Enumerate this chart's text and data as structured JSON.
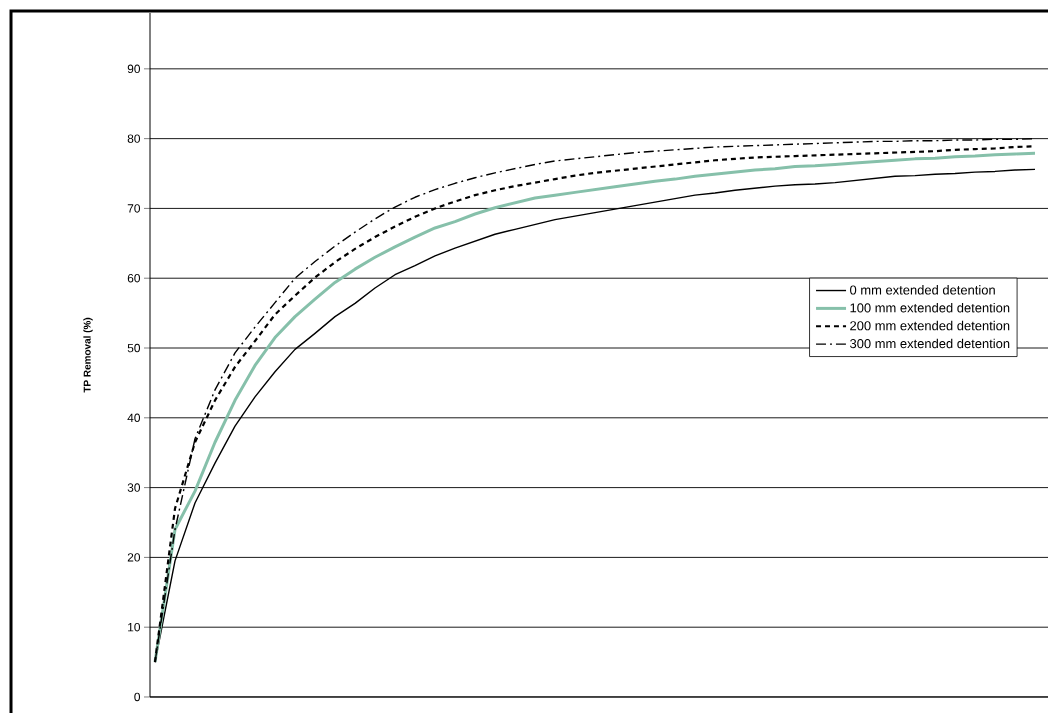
{
  "chart_data": {
    "type": "line",
    "ylabel": "TP Removal (%)",
    "categories": [
      null,
      null,
      null,
      null,
      null,
      null,
      null,
      null,
      null,
      null,
      null,
      null,
      null,
      null,
      null,
      null,
      null,
      null,
      null,
      null,
      null,
      null,
      null,
      null,
      null,
      null,
      null,
      null,
      null,
      null,
      null,
      null,
      null,
      null,
      null,
      null,
      null,
      null,
      null,
      null,
      null,
      null,
      null,
      null,
      null
    ],
    "series": [
      {
        "name": "0 mm extended detention",
        "color": "#000000",
        "line_style": "solid",
        "values": [
          5,
          19.5,
          27.8,
          33.5,
          38.8,
          43,
          46.6,
          49.8,
          52.1,
          54.5,
          56.4,
          58.6,
          60.5,
          61.8,
          63.2,
          64.3,
          65.3,
          66.3,
          67,
          67.7,
          68.4,
          68.9,
          69.4,
          69.9,
          70.4,
          70.9,
          71.4,
          71.9,
          72.2,
          72.6,
          72.9,
          73.2,
          73.4,
          73.5,
          73.7,
          74,
          74.3,
          74.6,
          74.7,
          74.9,
          75,
          75.2,
          75.3,
          75.5,
          75.6
        ]
      },
      {
        "name": "100 mm extended detention",
        "color": "#86c0aa",
        "line_style": "solid",
        "values": [
          5,
          24,
          29.5,
          36.5,
          42.5,
          47.5,
          51.5,
          54.5,
          57,
          59.4,
          61.3,
          63,
          64.5,
          65.9,
          67.2,
          68.1,
          69.2,
          70.1,
          70.8,
          71.5,
          71.9,
          72.3,
          72.7,
          73.1,
          73.5,
          73.9,
          74.2,
          74.6,
          74.9,
          75.2,
          75.5,
          75.7,
          76,
          76.1,
          76.3,
          76.5,
          76.7,
          76.9,
          77.1,
          77.2,
          77.4,
          77.5,
          77.7,
          77.8,
          77.9
        ]
      },
      {
        "name": "200 mm extended detention",
        "color": "#000000",
        "line_style": "dashed",
        "values": [
          5,
          27,
          36.5,
          42.5,
          47.3,
          51,
          54.8,
          57.5,
          60.1,
          62.3,
          64.2,
          65.9,
          67.4,
          68.8,
          70,
          71,
          71.9,
          72.6,
          73.2,
          73.7,
          74.2,
          74.7,
          75.1,
          75.4,
          75.7,
          76,
          76.3,
          76.6,
          76.9,
          77.1,
          77.3,
          77.4,
          77.5,
          77.6,
          77.7,
          77.8,
          77.9,
          78,
          78.1,
          78.2,
          78.4,
          78.5,
          78.6,
          78.8,
          78.9
        ]
      },
      {
        "name": "300 mm extended detention",
        "color": "#000000",
        "line_style": "dashdot",
        "values": [
          5,
          24,
          37,
          44,
          49.3,
          53,
          56.5,
          60,
          62.4,
          64.6,
          66.6,
          68.5,
          70.2,
          71.6,
          72.7,
          73.6,
          74.4,
          75.1,
          75.7,
          76.3,
          76.8,
          77.1,
          77.4,
          77.7,
          78,
          78.2,
          78.4,
          78.6,
          78.8,
          78.9,
          79,
          79.1,
          79.2,
          79.3,
          79.4,
          79.5,
          79.6,
          79.6,
          79.7,
          79.7,
          79.8,
          79.8,
          79.9,
          79.9,
          80
        ]
      }
    ],
    "ylim": [
      0,
      98
    ],
    "yticks": [
      0,
      10,
      20,
      30,
      40,
      50,
      60,
      70,
      80,
      90
    ],
    "grid": "y",
    "legend": "right",
    "marker": "none"
  }
}
